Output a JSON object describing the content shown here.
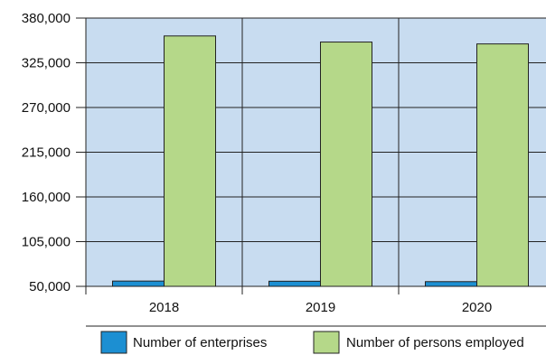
{
  "chart_data": {
    "type": "bar",
    "categories": [
      "2018",
      "2019",
      "2020"
    ],
    "series": [
      {
        "name": "Number of enterprises",
        "values": [
          56500,
          56300,
          55800
        ],
        "color": "#1c8fd2"
      },
      {
        "name": "Number of persons employed",
        "values": [
          358000,
          350500,
          348200
        ],
        "color": "#b5d889"
      }
    ],
    "y_ticks": [
      "380,000",
      "325,000",
      "270,000",
      "215,000",
      "160,000",
      "105,000",
      "50,000"
    ],
    "y_tick_values": [
      380000,
      325000,
      270000,
      215000,
      160000,
      105000,
      50000
    ],
    "ylim": [
      50000,
      380000
    ],
    "plot_background": "#c8dcf0",
    "grid": true,
    "legend_position": "bottom"
  }
}
